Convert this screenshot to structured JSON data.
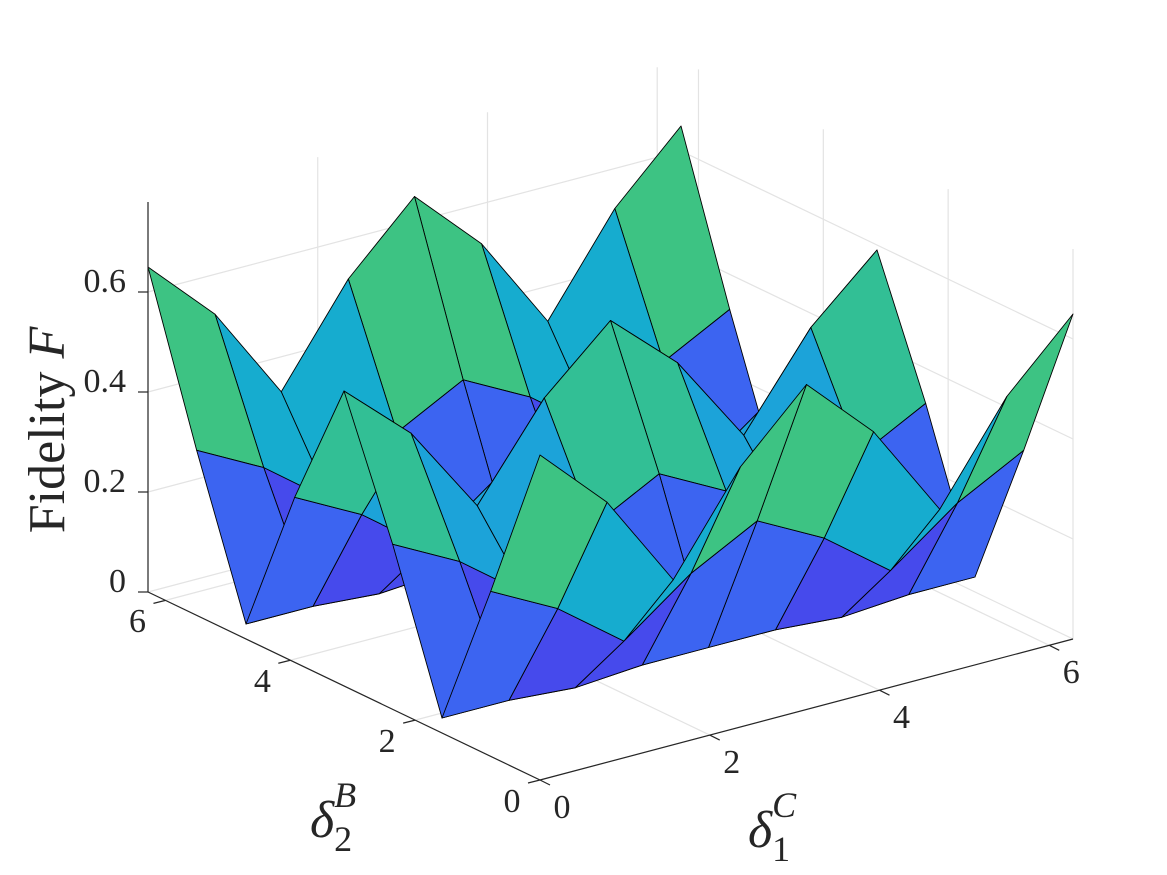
{
  "chart_data": {
    "type": "surface",
    "xlabel": {
      "base": "δ",
      "sub": "1",
      "sup": "C"
    },
    "ylabel": {
      "base": "δ",
      "sub": "2",
      "sup": "B"
    },
    "zlabel": {
      "text": "Fidelity",
      "var": "F"
    },
    "x": [
      0,
      0.79,
      1.57,
      2.36,
      3.14,
      3.93,
      4.71,
      5.5,
      6.28
    ],
    "y": [
      0,
      0.79,
      1.57,
      2.36,
      3.14,
      3.93,
      4.71,
      5.5,
      6.28
    ],
    "z": [
      [
        0.65,
        0.52,
        0.33,
        0.52,
        0.65,
        0.52,
        0.33,
        0.52,
        0.65
      ],
      [
        0.33,
        0.26,
        0.16,
        0.26,
        0.33,
        0.26,
        0.16,
        0.26,
        0.33
      ],
      [
        0.03,
        0.03,
        0.02,
        0.03,
        0.03,
        0.03,
        0.02,
        0.03,
        0.03
      ],
      [
        0.33,
        0.26,
        0.16,
        0.26,
        0.33,
        0.26,
        0.16,
        0.26,
        0.33
      ],
      [
        0.59,
        0.47,
        0.29,
        0.47,
        0.59,
        0.47,
        0.29,
        0.47,
        0.59
      ],
      [
        0.33,
        0.26,
        0.16,
        0.26,
        0.33,
        0.26,
        0.16,
        0.26,
        0.33
      ],
      [
        0.03,
        0.03,
        0.02,
        0.03,
        0.03,
        0.03,
        0.02,
        0.03,
        0.03
      ],
      [
        0.33,
        0.26,
        0.16,
        0.26,
        0.33,
        0.26,
        0.16,
        0.26,
        0.33
      ],
      [
        0.65,
        0.52,
        0.33,
        0.52,
        0.65,
        0.52,
        0.33,
        0.52,
        0.65
      ]
    ],
    "xlim": [
      0,
      6.28
    ],
    "ylim": [
      0,
      6.28
    ],
    "zlim": [
      0,
      0.78
    ],
    "xticks": [
      0,
      2,
      4,
      6
    ],
    "yticks": [
      0,
      2,
      4,
      6
    ],
    "zticks": [
      0,
      0.2,
      0.4,
      0.6
    ],
    "grid": true,
    "colormap": [
      "#3e26a8",
      "#4746eb",
      "#2e87f7",
      "#12b2c8",
      "#3fc47f",
      "#a8c43a",
      "#fbbc3d",
      "#f9fb15"
    ],
    "edgecolor": "#000000"
  }
}
